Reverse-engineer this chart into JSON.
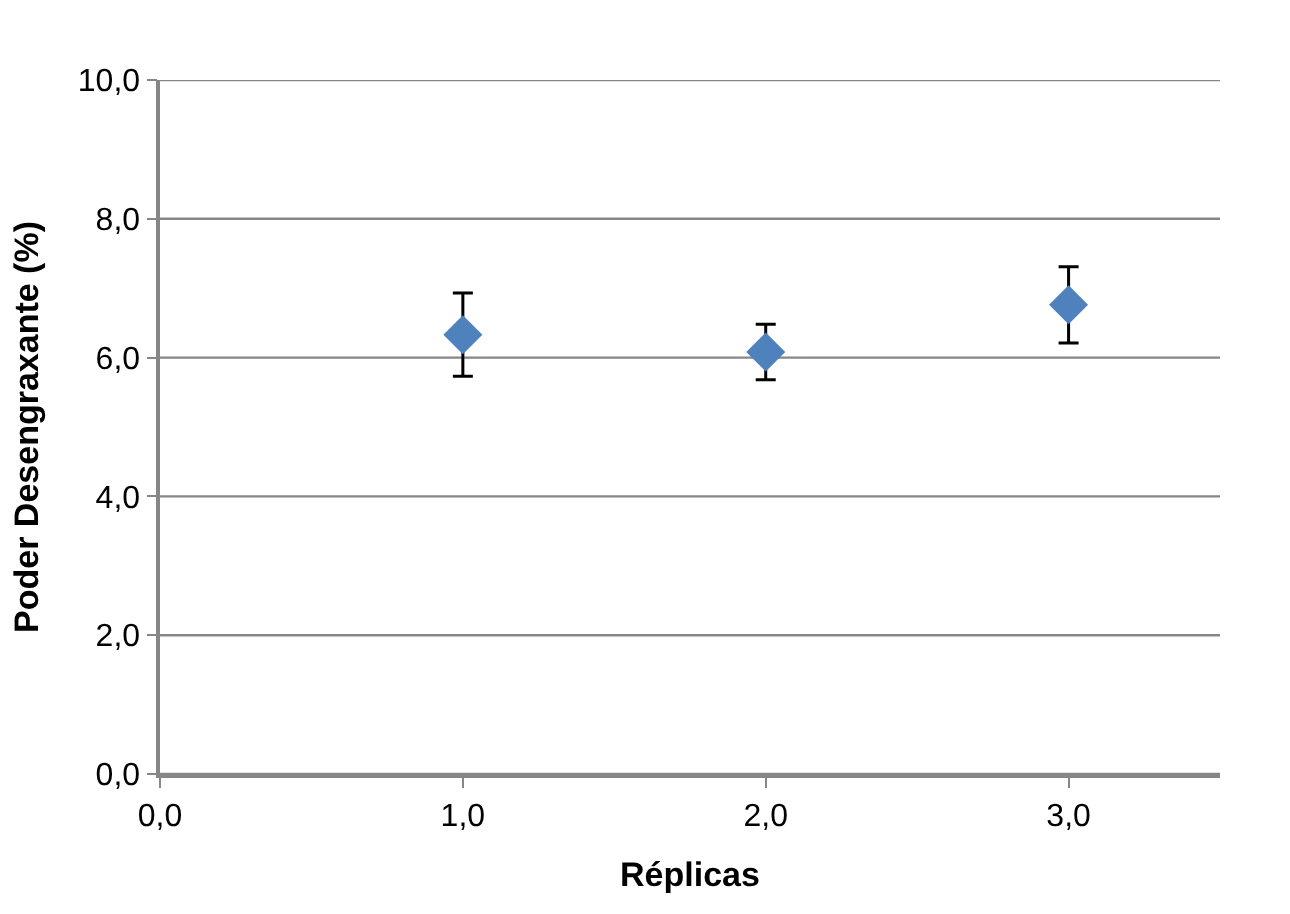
{
  "chart_data": {
    "type": "scatter",
    "xlabel": "Réplicas",
    "ylabel": "Poder Desengraxante (%)",
    "x": [
      1.0,
      2.0,
      3.0
    ],
    "series": [
      {
        "color": "#4f81bd",
        "values": [
          6.33,
          6.08,
          6.76
        ],
        "errors": [
          0.6,
          0.4,
          0.55
        ]
      }
    ],
    "xlim": [
      0,
      3.5
    ],
    "xticks": [
      {
        "value": 0,
        "label": "0,0"
      },
      {
        "value": 1,
        "label": "1,0"
      },
      {
        "value": 2,
        "label": "2,0"
      },
      {
        "value": 3,
        "label": "3,0"
      }
    ],
    "ylim": [
      0,
      10
    ],
    "yticks": [
      {
        "value": 0,
        "label": "0,0"
      },
      {
        "value": 2,
        "label": "2,0"
      },
      {
        "value": 4,
        "label": "4,0"
      },
      {
        "value": 6,
        "label": "6,0"
      },
      {
        "value": 8,
        "label": "8,0"
      },
      {
        "value": 10,
        "label": "10,0"
      }
    ],
    "grid": "y",
    "marker": "diamond"
  }
}
